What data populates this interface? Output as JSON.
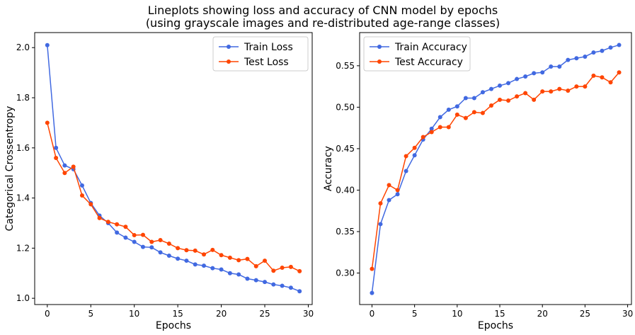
{
  "figure": {
    "title_line1": "Lineplots showing loss and accuracy of CNN model by epochs",
    "title_line2": "(using grayscale images and re-distributed age-range classes)"
  },
  "chart_data": [
    {
      "type": "line",
      "xlabel": "Epochs",
      "ylabel": "Categorical Crossentropy",
      "xlim": [
        -1.45,
        30.45
      ],
      "ylim": [
        0.975,
        2.06
      ],
      "xticks": [
        0,
        5,
        10,
        15,
        20,
        25,
        30
      ],
      "yticks": [
        1.0,
        1.2,
        1.4,
        1.6,
        1.8,
        2.0
      ],
      "ytick_labels": [
        "1.0",
        "1.2",
        "1.4",
        "1.6",
        "1.8",
        "2.0"
      ],
      "grid": false,
      "legend_position": "upper right",
      "x": [
        0,
        1,
        2,
        3,
        4,
        5,
        6,
        7,
        8,
        9,
        10,
        11,
        12,
        13,
        14,
        15,
        16,
        17,
        18,
        19,
        20,
        21,
        22,
        23,
        24,
        25,
        26,
        27,
        28,
        29
      ],
      "series": [
        {
          "name": "Train Loss",
          "color": "#4169E1",
          "values": [
            2.01,
            1.6,
            1.53,
            1.515,
            1.45,
            1.38,
            1.33,
            1.3,
            1.262,
            1.242,
            1.225,
            1.205,
            1.203,
            1.183,
            1.17,
            1.158,
            1.15,
            1.135,
            1.13,
            1.12,
            1.115,
            1.1,
            1.095,
            1.078,
            1.072,
            1.065,
            1.055,
            1.05,
            1.042,
            1.028
          ]
        },
        {
          "name": "Test Loss",
          "color": "#FF4500",
          "values": [
            1.7,
            1.56,
            1.5,
            1.525,
            1.41,
            1.375,
            1.32,
            1.305,
            1.295,
            1.285,
            1.252,
            1.253,
            1.225,
            1.232,
            1.218,
            1.2,
            1.192,
            1.19,
            1.175,
            1.193,
            1.172,
            1.162,
            1.152,
            1.157,
            1.128,
            1.15,
            1.11,
            1.122,
            1.125,
            1.108
          ]
        }
      ]
    },
    {
      "type": "line",
      "xlabel": "Epochs",
      "ylabel": "Accuracy",
      "xlim": [
        -1.45,
        30.45
      ],
      "ylim": [
        0.262,
        0.59
      ],
      "xticks": [
        0,
        5,
        10,
        15,
        20,
        25,
        30
      ],
      "yticks": [
        0.3,
        0.35,
        0.4,
        0.45,
        0.5,
        0.55
      ],
      "ytick_labels": [
        "0.30",
        "0.35",
        "0.40",
        "0.45",
        "0.50",
        "0.55"
      ],
      "grid": false,
      "legend_position": "upper left",
      "x": [
        0,
        1,
        2,
        3,
        4,
        5,
        6,
        7,
        8,
        9,
        10,
        11,
        12,
        13,
        14,
        15,
        16,
        17,
        18,
        19,
        20,
        21,
        22,
        23,
        24,
        25,
        26,
        27,
        28,
        29
      ],
      "series": [
        {
          "name": "Train Accuracy",
          "color": "#4169E1",
          "values": [
            0.276,
            0.359,
            0.388,
            0.395,
            0.423,
            0.442,
            0.461,
            0.474,
            0.488,
            0.497,
            0.501,
            0.511,
            0.511,
            0.518,
            0.522,
            0.526,
            0.529,
            0.534,
            0.537,
            0.541,
            0.542,
            0.549,
            0.549,
            0.557,
            0.559,
            0.561,
            0.566,
            0.568,
            0.572,
            0.575
          ]
        },
        {
          "name": "Test Accuracy",
          "color": "#FF4500",
          "values": [
            0.305,
            0.384,
            0.406,
            0.4,
            0.441,
            0.451,
            0.464,
            0.47,
            0.476,
            0.476,
            0.491,
            0.487,
            0.494,
            0.493,
            0.502,
            0.509,
            0.508,
            0.513,
            0.517,
            0.509,
            0.519,
            0.519,
            0.522,
            0.52,
            0.525,
            0.525,
            0.538,
            0.536,
            0.53,
            0.542
          ]
        }
      ]
    }
  ]
}
